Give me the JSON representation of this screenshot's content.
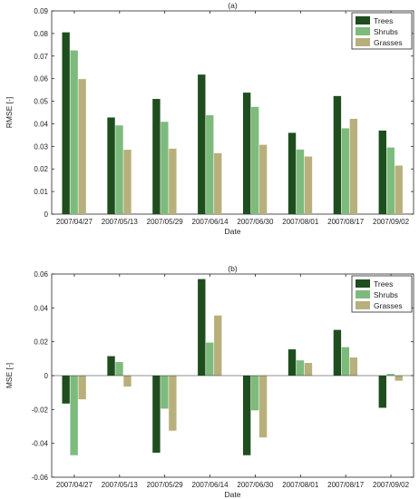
{
  "chart_data": [
    {
      "type": "bar",
      "title": "(a)",
      "xlabel": "Date",
      "ylabel": "RMSE [-]",
      "categories": [
        "2007/04/27",
        "2007/05/13",
        "2007/05/29",
        "2007/06/14",
        "2007/06/30",
        "2007/08/01",
        "2007/08/17",
        "2007/09/02"
      ],
      "ylim": [
        0,
        0.09
      ],
      "yticks": [
        0,
        0.01,
        0.02,
        0.03,
        0.04,
        0.05,
        0.06,
        0.07,
        0.08,
        0.09
      ],
      "ytick_labels": [
        "0",
        "0.01",
        "0.02",
        "0.03",
        "0.04",
        "0.05",
        "0.06",
        "0.07",
        "0.08",
        "0.09"
      ],
      "legend_position": "top-right",
      "grid": false,
      "series": [
        {
          "name": "Trees",
          "color": "#1e4d1e",
          "values": [
            0.0805,
            0.0428,
            0.051,
            0.0618,
            0.0538,
            0.036,
            0.0523,
            0.037
          ]
        },
        {
          "name": "Shrubs",
          "color": "#7dbb7d",
          "values": [
            0.0725,
            0.0393,
            0.0409,
            0.0438,
            0.0475,
            0.0286,
            0.038,
            0.0295
          ]
        },
        {
          "name": "Grasses",
          "color": "#b8b07c",
          "values": [
            0.0598,
            0.0285,
            0.029,
            0.027,
            0.0307,
            0.0255,
            0.0422,
            0.0215
          ]
        }
      ]
    },
    {
      "type": "bar",
      "title": "(b)",
      "xlabel": "Date",
      "ylabel": "MSE [-]",
      "categories": [
        "2007/04/27",
        "2007/05/13",
        "2007/05/29",
        "2007/06/14",
        "2007/06/30",
        "2007/08/01",
        "2007/08/17",
        "2007/09/02"
      ],
      "ylim": [
        -0.06,
        0.06
      ],
      "yticks": [
        -0.06,
        -0.04,
        -0.02,
        0,
        0.02,
        0.04,
        0.06
      ],
      "ytick_labels": [
        "-0.06",
        "-0.04",
        "-0.02",
        "0",
        "0.02",
        "0.04",
        "0.06"
      ],
      "legend_position": "top-right",
      "grid": false,
      "series": [
        {
          "name": "Trees",
          "color": "#1e4d1e",
          "values": [
            -0.0165,
            0.0115,
            -0.0455,
            0.057,
            -0.047,
            0.0155,
            0.027,
            -0.019
          ]
        },
        {
          "name": "Shrubs",
          "color": "#7dbb7d",
          "values": [
            -0.047,
            0.008,
            -0.0195,
            0.0195,
            -0.0205,
            0.009,
            0.0168,
            0.001
          ]
        },
        {
          "name": "Grasses",
          "color": "#b8b07c",
          "values": [
            -0.014,
            -0.0065,
            -0.0325,
            0.0355,
            -0.0365,
            0.0075,
            0.0107,
            -0.003
          ]
        }
      ]
    }
  ]
}
